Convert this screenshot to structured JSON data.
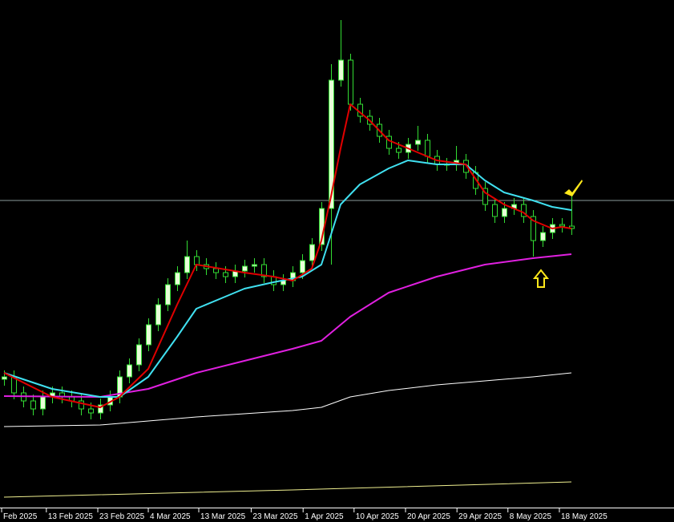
{
  "chart_data": {
    "type": "candlestick",
    "xlim": [
      -0.42,
      69.67
    ],
    "ylim": [
      0,
      633
    ],
    "xticks": [
      {
        "value": -0.25,
        "label": "Feb 2025"
      },
      {
        "value": 4.4,
        "label": "13 Feb 2025"
      },
      {
        "value": 9.75,
        "label": "23 Feb 2025"
      },
      {
        "value": 15,
        "label": "4 Mar 2025"
      },
      {
        "value": 20.25,
        "label": "13 Mar 2025"
      },
      {
        "value": 25.7,
        "label": "23 Mar 2025"
      },
      {
        "value": 31.1,
        "label": "1 Apr 2025"
      },
      {
        "value": 36.4,
        "label": "10 Apr 2025"
      },
      {
        "value": 41.75,
        "label": "20 Apr 2025"
      },
      {
        "value": 47.1,
        "label": "29 Apr 2025"
      },
      {
        "value": 52.4,
        "label": "8 May 2025"
      },
      {
        "value": 57.75,
        "label": "18 May 2025"
      }
    ],
    "candles": {
      "up_color": "#e8ffd8",
      "down_color": "#000000",
      "wick_color": "#33dd33",
      "open": [
        160,
        163,
        143,
        133,
        123,
        138,
        143,
        138,
        133,
        123,
        118,
        128,
        138,
        163,
        178,
        203,
        228,
        253,
        278,
        293,
        313,
        303,
        298,
        293,
        288,
        295,
        301,
        303,
        288,
        278,
        283,
        293,
        308,
        328,
        373,
        533,
        558,
        503,
        488,
        478,
        463,
        448,
        443,
        453,
        458,
        438,
        428,
        428,
        433,
        418,
        398,
        378,
        363,
        373,
        378,
        363,
        333,
        343,
        353,
        351
      ],
      "high": [
        171,
        171,
        151,
        141,
        146,
        151,
        151,
        146,
        141,
        131,
        136,
        146,
        171,
        186,
        211,
        236,
        261,
        286,
        301,
        333,
        321,
        311,
        306,
        301,
        303,
        309,
        311,
        311,
        296,
        291,
        301,
        316,
        336,
        381,
        553,
        608,
        566,
        511,
        496,
        486,
        471,
        456,
        461,
        476,
        466,
        446,
        436,
        451,
        441,
        426,
        406,
        386,
        381,
        386,
        386,
        371,
        351,
        361,
        361,
        390
      ],
      "low": [
        152,
        135,
        125,
        115,
        115,
        130,
        130,
        125,
        115,
        110,
        110,
        120,
        130,
        155,
        170,
        195,
        220,
        245,
        270,
        285,
        295,
        290,
        285,
        280,
        280,
        287,
        293,
        280,
        270,
        270,
        275,
        285,
        300,
        320,
        303,
        525,
        495,
        480,
        470,
        455,
        440,
        435,
        435,
        445,
        430,
        420,
        420,
        420,
        410,
        390,
        370,
        355,
        355,
        365,
        355,
        313,
        325,
        335,
        343,
        340
      ],
      "close": [
        163,
        143,
        133,
        123,
        138,
        143,
        138,
        133,
        123,
        118,
        128,
        138,
        163,
        178,
        203,
        228,
        253,
        278,
        293,
        313,
        303,
        298,
        293,
        288,
        295,
        301,
        303,
        288,
        278,
        283,
        293,
        308,
        328,
        373,
        533,
        558,
        503,
        488,
        478,
        463,
        448,
        443,
        453,
        458,
        438,
        428,
        428,
        433,
        418,
        398,
        378,
        363,
        373,
        378,
        363,
        333,
        343,
        353,
        351,
        348
      ]
    },
    "lines": [
      {
        "color": "#f0f090",
        "width": 1,
        "x": [
          0,
          30,
          59
        ],
        "values": [
          13,
          22,
          32
        ]
      },
      {
        "color": "#ffffff",
        "width": 1,
        "x": [
          0,
          10,
          20,
          30,
          33,
          36,
          40,
          45,
          50,
          55,
          59
        ],
        "values": [
          101,
          103,
          113,
          121,
          125,
          138,
          146,
          153,
          158,
          163,
          168
        ]
      },
      {
        "color": "#e020e0",
        "width": 2,
        "x": [
          0,
          10,
          15,
          20,
          25,
          30,
          33,
          36,
          40,
          45,
          50,
          55,
          59
        ],
        "values": [
          139,
          138,
          148,
          168,
          183,
          198,
          208,
          238,
          268,
          288,
          303,
          311,
          316
        ]
      },
      {
        "color": "#40e0f0",
        "width": 2,
        "x": [
          0,
          5,
          10,
          12,
          15,
          18,
          20,
          23,
          25,
          28,
          31,
          33,
          35,
          37,
          40,
          42,
          45,
          48,
          50,
          52,
          55,
          57,
          59
        ],
        "values": [
          168,
          148,
          138,
          138,
          163,
          213,
          248,
          263,
          273,
          281,
          288,
          303,
          378,
          403,
          423,
          433,
          428,
          428,
          408,
          393,
          383,
          375,
          371
        ]
      },
      {
        "color": "#e00000",
        "width": 2,
        "x": [
          0,
          5,
          10,
          12,
          15,
          18,
          20,
          25,
          28,
          30,
          32,
          33,
          34,
          35,
          36,
          38,
          40,
          42,
          45,
          48,
          50,
          52,
          54,
          55,
          56,
          57,
          58,
          59
        ],
        "values": [
          168,
          138,
          125,
          138,
          173,
          253,
          303,
          293,
          288,
          283,
          298,
          333,
          388,
          448,
          503,
          483,
          458,
          448,
          433,
          428,
          393,
          378,
          368,
          358,
          353,
          348,
          350,
          348
        ]
      }
    ],
    "price_line": {
      "value": 383,
      "color": "#8a9a9a"
    }
  }
}
